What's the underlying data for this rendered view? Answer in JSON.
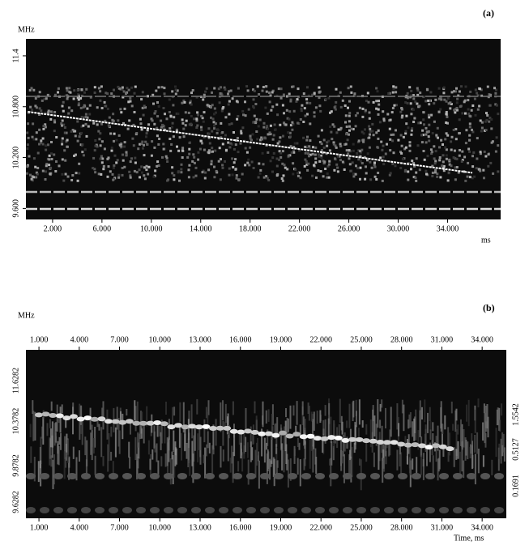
{
  "chart_data": [
    {
      "type": "line",
      "label": "(a)",
      "y_label": "MHz",
      "x_label": "ms",
      "color": "#ffffff",
      "x": [
        0,
        6,
        12,
        18,
        24,
        30,
        36
      ],
      "values": [
        10.74,
        10.62,
        10.5,
        10.38,
        10.26,
        10.14,
        10.02
      ],
      "xlim": [
        -0.16,
        38.3
      ],
      "ylim": [
        9.47,
        11.6
      ],
      "xticks": [
        {
          "value": 2,
          "label": "2.000"
        },
        {
          "value": 6,
          "label": "6.000"
        },
        {
          "value": 10,
          "label": "10.000"
        },
        {
          "value": 14,
          "label": "14.000"
        },
        {
          "value": 18,
          "label": "18.000"
        },
        {
          "value": 22,
          "label": "22.000"
        },
        {
          "value": 26,
          "label": "26.000"
        },
        {
          "value": 30,
          "label": "30.000"
        },
        {
          "value": 34,
          "label": "34.000"
        }
      ],
      "yticks": [
        {
          "value": 9.6,
          "label": "9.600"
        },
        {
          "value": 10.2,
          "label": "10.200"
        },
        {
          "value": 10.8,
          "label": "10.800"
        },
        11.4
      ]
    },
    {
      "type": "spectrogram",
      "label": "(b)",
      "y_label": "MHz",
      "x_label": "Time,  ms",
      "xlim": [
        0.03,
        35.8
      ],
      "xticks": [
        {
          "value": 1,
          "label": "1.000"
        },
        {
          "value": 4,
          "label": "4.000"
        },
        {
          "value": 7,
          "label": "7.000"
        },
        {
          "value": 10,
          "label": "10.000"
        },
        {
          "value": 13,
          "label": "13.000"
        },
        {
          "value": 16,
          "label": "16.000"
        },
        {
          "value": 19,
          "label": "19.000"
        },
        {
          "value": 22,
          "label": "22.000"
        },
        {
          "value": 25,
          "label": "25.000"
        },
        {
          "value": 28,
          "label": "28.000"
        },
        {
          "value": 31,
          "label": "31.000"
        },
        {
          "value": 34,
          "label": "34.000"
        }
      ],
      "left_labels": [
        "9.6282",
        "9.8782",
        "10.3782",
        "11.6282"
      ],
      "right_labels": [
        "0.1691",
        "0.5127",
        "1.5542"
      ]
    }
  ]
}
